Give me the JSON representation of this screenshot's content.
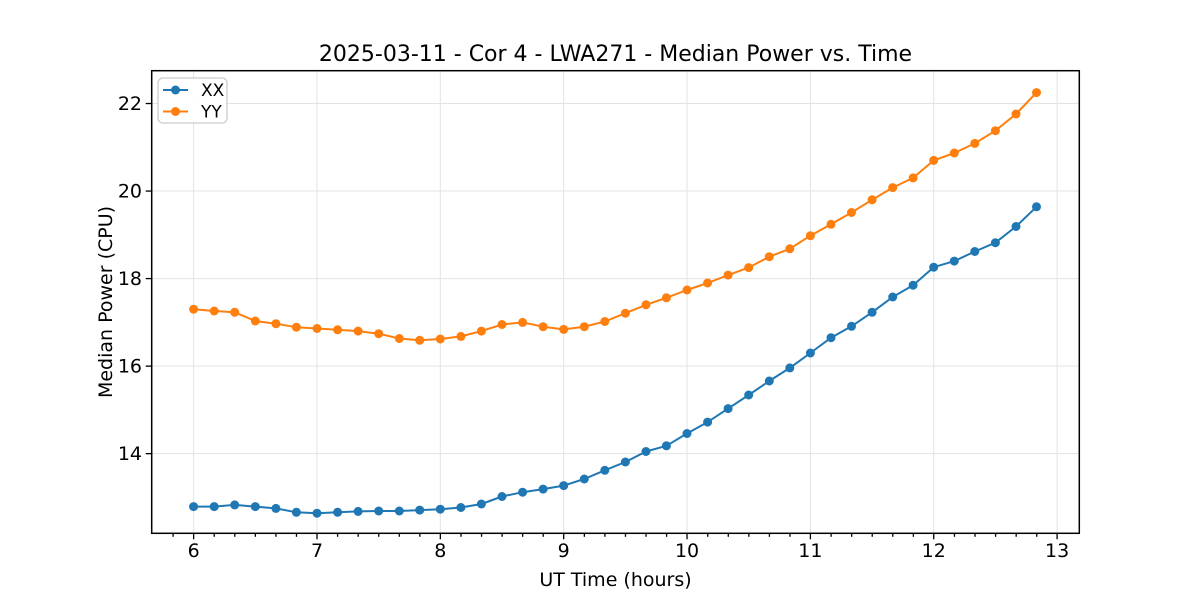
{
  "chart_data": {
    "type": "line",
    "title": "2025-03-11 - Cor 4 - LWA271 - Median Power vs. Time",
    "xlabel": "UT Time (hours)",
    "ylabel": "Median Power (CPU)",
    "xlim": [
      5.66,
      13.18
    ],
    "ylim": [
      12.18,
      22.75
    ],
    "grid": true,
    "legend_position": "upper left",
    "x_major_ticks": [
      6,
      7,
      8,
      9,
      10,
      11,
      12,
      13
    ],
    "x_minor_step": 0.1667,
    "y_major_ticks": [
      14,
      16,
      18,
      20,
      22
    ],
    "x": [
      6.0,
      6.167,
      6.333,
      6.5,
      6.667,
      6.833,
      7.0,
      7.167,
      7.333,
      7.5,
      7.667,
      7.833,
      8.0,
      8.167,
      8.333,
      8.5,
      8.667,
      8.833,
      9.0,
      9.167,
      9.333,
      9.5,
      9.667,
      9.833,
      10.0,
      10.167,
      10.333,
      10.5,
      10.667,
      10.833,
      11.0,
      11.167,
      11.333,
      11.5,
      11.667,
      11.833,
      12.0,
      12.167,
      12.333,
      12.5,
      12.667,
      12.833
    ],
    "series": [
      {
        "name": "XX",
        "color": "#1f77b4",
        "marker": "circle",
        "values": [
          12.79,
          12.79,
          12.83,
          12.79,
          12.75,
          12.66,
          12.64,
          12.66,
          12.68,
          12.69,
          12.69,
          12.71,
          12.73,
          12.77,
          12.85,
          13.02,
          13.12,
          13.19,
          13.27,
          13.42,
          13.62,
          13.81,
          14.05,
          14.18,
          14.46,
          14.72,
          15.03,
          15.34,
          15.66,
          15.96,
          16.3,
          16.65,
          16.91,
          17.23,
          17.58,
          17.85,
          18.26,
          18.4,
          18.62,
          18.82,
          19.19,
          19.64
        ]
      },
      {
        "name": "YY",
        "color": "#ff7f0e",
        "marker": "circle",
        "values": [
          17.3,
          17.26,
          17.23,
          17.03,
          16.97,
          16.89,
          16.86,
          16.83,
          16.8,
          16.74,
          16.63,
          16.59,
          16.62,
          16.68,
          16.8,
          16.95,
          17.0,
          16.9,
          16.84,
          16.9,
          17.02,
          17.21,
          17.4,
          17.56,
          17.74,
          17.9,
          18.08,
          18.25,
          18.5,
          18.68,
          18.98,
          19.24,
          19.51,
          19.8,
          20.08,
          20.3,
          20.7,
          20.87,
          21.09,
          21.38,
          21.76,
          22.25
        ]
      }
    ]
  }
}
